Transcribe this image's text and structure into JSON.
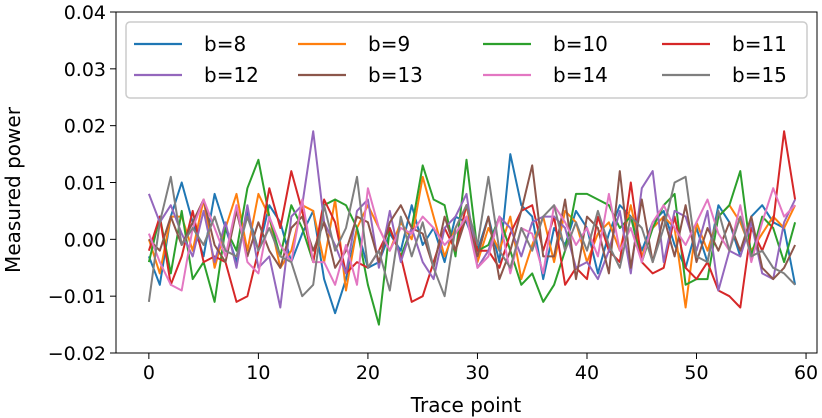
{
  "chart_data": {
    "type": "line",
    "xlabel": "Trace point",
    "ylabel": "Measured power",
    "xlim": [
      -3,
      61
    ],
    "ylim": [
      -0.02,
      0.04
    ],
    "xticks": [
      0,
      10,
      20,
      30,
      40,
      50,
      60
    ],
    "xtick_labels": [
      "0",
      "10",
      "20",
      "30",
      "40",
      "50",
      "60"
    ],
    "yticks": [
      -0.02,
      -0.01,
      0.0,
      0.01,
      0.02,
      0.03,
      0.04
    ],
    "ytick_labels": [
      "−0.02",
      "−0.01",
      "0.00",
      "0.01",
      "0.02",
      "0.03",
      "0.04"
    ],
    "grid": false,
    "legend_position": "top",
    "legend_columns": 4,
    "x": [
      0,
      1,
      2,
      3,
      4,
      5,
      6,
      7,
      8,
      9,
      10,
      11,
      12,
      13,
      14,
      15,
      16,
      17,
      18,
      19,
      20,
      21,
      22,
      23,
      24,
      25,
      26,
      27,
      28,
      29,
      30,
      31,
      32,
      33,
      34,
      35,
      36,
      37,
      38,
      39,
      40,
      41,
      42,
      43,
      44,
      45,
      46,
      47,
      48,
      49,
      50,
      51,
      52,
      53,
      54,
      55,
      56,
      57,
      58,
      59
    ],
    "series": [
      {
        "name": "b=8",
        "color": "#1f77b4",
        "values": [
          -0.003,
          -0.008,
          0.004,
          0.01,
          0.003,
          -0.003,
          0.008,
          0.002,
          -0.004,
          0.005,
          -0.002,
          0.006,
          0.003,
          -0.004,
          0.001,
          0.005,
          -0.007,
          -0.013,
          -0.007,
          0.002,
          -0.005,
          -0.004,
          0.001,
          -0.002,
          0.006,
          -0.001,
          0.002,
          -0.004,
          0.004,
          0.003,
          -0.002,
          0.004,
          -0.004,
          0.015,
          0.006,
          0.004,
          -0.007,
          0.002,
          -0.001,
          0.005,
          0.002,
          -0.006,
          0.001,
          0.006,
          0.004,
          -0.002,
          0.003,
          0.005,
          -0.001,
          -0.005,
          0.002,
          -0.004,
          0.006,
          0.003,
          -0.003,
          0.004,
          0.006,
          0.003,
          0.002,
          -0.008
        ]
      },
      {
        "name": "b=9",
        "color": "#ff7f0e",
        "values": [
          0.0,
          -0.006,
          0.004,
          0.004,
          -0.002,
          0.007,
          -0.005,
          0.002,
          0.008,
          -0.002,
          0.008,
          0.004,
          -0.005,
          -0.002,
          0.006,
          0.005,
          -0.004,
          0.007,
          -0.009,
          0.002,
          0.006,
          0.002,
          -0.002,
          0.003,
          0.0,
          0.011,
          0.004,
          -0.003,
          0.002,
          0.006,
          -0.004,
          0.002,
          -0.002,
          0.004,
          -0.007,
          -0.001,
          0.004,
          -0.004,
          0.005,
          0.003,
          -0.004,
          0.001,
          0.003,
          -0.002,
          0.006,
          -0.003,
          0.002,
          0.004,
          0.002,
          -0.012,
          0.003,
          -0.002,
          0.004,
          0.006,
          0.003,
          -0.002,
          0.001,
          0.004,
          0.002,
          0.006
        ]
      },
      {
        "name": "b=10",
        "color": "#2ca02c",
        "values": [
          -0.004,
          0.004,
          -0.006,
          0.005,
          -0.007,
          -0.004,
          -0.011,
          0.002,
          -0.002,
          0.009,
          0.014,
          0.004,
          -0.003,
          0.006,
          0.002,
          -0.004,
          0.006,
          0.007,
          0.006,
          0.002,
          -0.008,
          -0.015,
          0.002,
          -0.003,
          0.002,
          0.013,
          0.007,
          0.006,
          -0.003,
          0.014,
          -0.002,
          -0.001,
          0.004,
          -0.002,
          -0.008,
          -0.006,
          -0.011,
          -0.008,
          -0.002,
          0.008,
          0.008,
          0.007,
          0.006,
          0.002,
          0.004,
          -0.004,
          0.002,
          0.006,
          0.008,
          -0.008,
          -0.007,
          -0.007,
          0.004,
          0.006,
          0.012,
          -0.003,
          0.004,
          0.002,
          -0.004,
          0.003
        ]
      },
      {
        "name": "b=11",
        "color": "#d62728",
        "values": [
          -0.002,
          0.004,
          -0.008,
          -0.003,
          0.005,
          -0.004,
          -0.003,
          -0.004,
          -0.011,
          -0.01,
          -0.002,
          0.009,
          0.002,
          0.012,
          0.005,
          -0.004,
          0.007,
          0.003,
          -0.006,
          -0.004,
          -0.005,
          -0.002,
          0.002,
          -0.003,
          -0.011,
          -0.01,
          -0.004,
          0.002,
          -0.002,
          0.006,
          -0.002,
          -0.002,
          -0.005,
          0.001,
          0.005,
          0.006,
          -0.002,
          0.004,
          -0.008,
          -0.005,
          -0.007,
          0.004,
          -0.002,
          -0.004,
          0.01,
          -0.004,
          -0.006,
          -0.005,
          0.004,
          -0.005,
          -0.007,
          -0.004,
          -0.009,
          -0.01,
          -0.012,
          0.002,
          -0.002,
          0.003,
          0.019,
          0.007
        ]
      },
      {
        "name": "b=12",
        "color": "#9467bd",
        "values": [
          0.008,
          0.003,
          0.006,
          0.001,
          -0.003,
          0.005,
          -0.004,
          0.003,
          -0.005,
          0.006,
          -0.005,
          -0.003,
          -0.012,
          0.004,
          0.006,
          0.019,
          0.003,
          -0.001,
          -0.006,
          0.005,
          0.007,
          -0.005,
          0.005,
          -0.004,
          0.002,
          -0.004,
          -0.007,
          0.002,
          0.004,
          0.008,
          -0.005,
          -0.002,
          0.004,
          0.002,
          -0.003,
          0.003,
          0.004,
          0.004,
          0.002,
          -0.005,
          -0.004,
          -0.007,
          -0.002,
          0.005,
          -0.006,
          0.009,
          0.012,
          -0.004,
          0.005,
          0.004,
          -0.002,
          0.005,
          -0.009,
          -0.002,
          -0.003,
          0.003,
          -0.006,
          -0.007,
          0.003,
          0.007
        ]
      },
      {
        "name": "b=13",
        "color": "#8c564b",
        "values": [
          0.0,
          -0.002,
          0.004,
          -0.001,
          0.003,
          0.007,
          -0.001,
          -0.004,
          0.005,
          -0.003,
          0.003,
          -0.002,
          -0.005,
          0.002,
          0.004,
          -0.002,
          0.003,
          -0.005,
          -0.002,
          0.004,
          0.003,
          -0.004,
          0.003,
          0.006,
          0.002,
          0.001,
          -0.005,
          0.004,
          -0.002,
          0.004,
          -0.003,
          0.004,
          -0.007,
          -0.002,
          0.005,
          0.013,
          -0.003,
          -0.003,
          0.007,
          -0.007,
          0.004,
          0.002,
          -0.006,
          0.012,
          -0.005,
          0.007,
          -0.004,
          0.004,
          -0.003,
          0.006,
          -0.004,
          0.002,
          -0.002,
          0.003,
          -0.002,
          0.004,
          -0.005,
          -0.007,
          -0.005,
          -0.001
        ]
      },
      {
        "name": "b=14",
        "color": "#e377c2",
        "values": [
          0.001,
          -0.004,
          -0.008,
          -0.009,
          0.002,
          0.007,
          0.002,
          -0.003,
          0.006,
          -0.004,
          -0.006,
          0.004,
          -0.001,
          -0.004,
          0.007,
          -0.004,
          -0.004,
          -0.008,
          -0.001,
          -0.008,
          0.009,
          0.002,
          -0.002,
          0.002,
          0.001,
          0.004,
          0.002,
          -0.001,
          0.001,
          0.004,
          -0.005,
          -0.003,
          0.004,
          -0.006,
          0.002,
          0.001,
          -0.006,
          0.006,
          0.003,
          -0.001,
          0.002,
          -0.003,
          0.008,
          -0.002,
          0.002,
          -0.004,
          0.003,
          0.006,
          0.002,
          -0.001,
          0.003,
          0.007,
          0.001,
          -0.002,
          0.006,
          -0.004,
          0.003,
          0.009,
          0.004,
          0.006
        ]
      },
      {
        "name": "b=15",
        "color": "#7f7f7f",
        "values": [
          -0.011,
          0.003,
          0.011,
          -0.001,
          0.002,
          -0.001,
          0.004,
          -0.002,
          -0.003,
          0.004,
          -0.002,
          0.002,
          -0.003,
          -0.004,
          -0.01,
          -0.008,
          0.006,
          -0.002,
          0.002,
          0.011,
          -0.005,
          -0.002,
          -0.009,
          0.004,
          -0.003,
          0.003,
          -0.005,
          -0.01,
          0.002,
          0.006,
          -0.001,
          0.011,
          -0.002,
          -0.005,
          0.002,
          -0.002,
          0.004,
          0.006,
          -0.002,
          0.003,
          -0.002,
          0.005,
          -0.001,
          -0.005,
          0.004,
          0.002,
          -0.004,
          0.002,
          0.01,
          0.011,
          -0.003,
          -0.004,
          0.005,
          -0.002,
          0.004,
          -0.003,
          -0.002,
          -0.005,
          -0.006,
          -0.008
        ]
      }
    ]
  }
}
